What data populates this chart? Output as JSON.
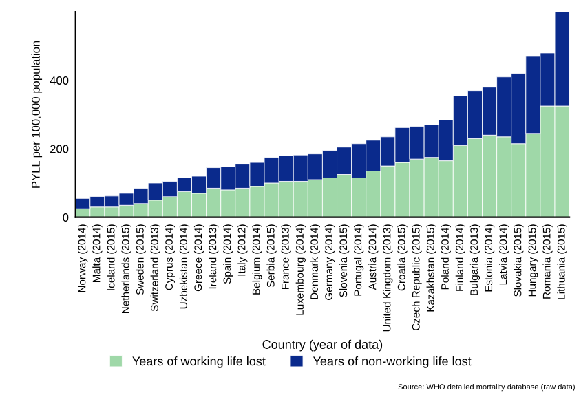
{
  "chart_data": {
    "type": "bar",
    "stacked": true,
    "xlabel": "Country (year of data)",
    "ylabel": "PYLL per 100,000 population",
    "categories": [
      "Norway (2014)",
      "Malta (2014)",
      "Iceland (2015)",
      "Netherlands (2015)",
      "Sweden (2015)",
      "Switzerland (2013)",
      "Cyprus (2014)",
      "Uzbekistan (2014)",
      "Greece (2014)",
      "Ireland (2013)",
      "Spain (2014)",
      "Italy (2012)",
      "Belgium (2014)",
      "Serbia (2015)",
      "France (2013)",
      "Luxembourg (2014)",
      "Denmark (2014)",
      "Germany (2014)",
      "Slovenia (2015)",
      "Portugal (2014)",
      "Austria (2014)",
      "United Kingdom (2013)",
      "Croatia (2015)",
      "Czech Republic (2015)",
      "Kazakhstan (2015)",
      "Poland (2014)",
      "Finland (2014)",
      "Bulgaria (2013)",
      "Estonia (2014)",
      "Latvia (2014)",
      "Slovakia (2015)",
      "Hungary (2015)",
      "Romania (2015)",
      "Lithuania (2015)"
    ],
    "series": [
      {
        "name": "Years of working life lost",
        "color": "#9fd8a8",
        "values": [
          25,
          30,
          30,
          35,
          40,
          50,
          60,
          75,
          70,
          85,
          80,
          85,
          90,
          100,
          105,
          105,
          110,
          115,
          125,
          115,
          135,
          150,
          160,
          170,
          175,
          165,
          210,
          230,
          240,
          235,
          215,
          245,
          325,
          325
        ]
      },
      {
        "name": "Years of non-working life lost",
        "color": "#0a2a8c",
        "values": [
          30,
          30,
          32,
          35,
          45,
          50,
          45,
          40,
          50,
          60,
          68,
          70,
          70,
          75,
          75,
          77,
          75,
          80,
          80,
          100,
          90,
          85,
          102,
          95,
          95,
          120,
          145,
          140,
          140,
          175,
          205,
          225,
          155,
          275
        ]
      }
    ],
    "ylim": [
      0,
      600
    ],
    "yticks": [
      0,
      200,
      400
    ],
    "grid": false,
    "legend": "bottom",
    "annotations": [
      "Source: WHO detailed mortality database (raw data)"
    ]
  }
}
